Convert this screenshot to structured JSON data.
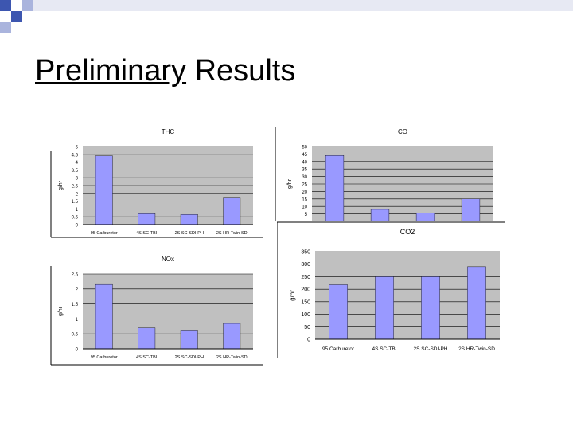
{
  "slide": {
    "title_underlined": "Preliminary",
    "title_rest": "Results"
  },
  "colors": {
    "bar": "#9999ff",
    "grid": "#000000",
    "plot_bg": "#c0c0c0",
    "corner_blue": "#3d56b0"
  },
  "chart_data": [
    {
      "type": "bar",
      "title": "THC",
      "ylabel": "g/hr",
      "categories": [
        "95 Carburetor",
        "4S SC-TBI",
        "2S SC-SDI-PH",
        "2S HR-Twin-SD"
      ],
      "values": [
        4.4,
        0.7,
        0.65,
        1.7
      ],
      "ylim": [
        0,
        5
      ],
      "yticks": [
        "0",
        "0.5",
        "1",
        "1.5",
        "2",
        "2.5",
        "3",
        "3.5",
        "4",
        "4.5",
        "5"
      ],
      "grid": true
    },
    {
      "type": "bar",
      "title": "CO",
      "ylabel": "g/hr",
      "categories": [
        "95 Carburetor",
        "4S SC-TBI",
        "2S SC-SDI-PH",
        "2S HR-Twin-SD"
      ],
      "values": [
        44,
        8,
        5.5,
        15
      ],
      "ylim": [
        0,
        50
      ],
      "yticks": [
        "5",
        "10",
        "15",
        "20",
        "25",
        "30",
        "35",
        "40",
        "45",
        "50"
      ],
      "grid": true
    },
    {
      "type": "bar",
      "title": "NOx",
      "ylabel": "g/hr",
      "categories": [
        "95 Carburetor",
        "4S SC-TBI",
        "2S SC-SDI-PH",
        "2S HR-Twin-SD"
      ],
      "values": [
        2.15,
        0.7,
        0.6,
        0.85
      ],
      "ylim": [
        0,
        2.5
      ],
      "yticks": [
        "0",
        "0.5",
        "1",
        "1.5",
        "2",
        "2.5"
      ],
      "grid": true
    },
    {
      "type": "bar",
      "title": "CO2",
      "ylabel": "g/hr",
      "categories": [
        "95 Carburetor",
        "4S SC-TBI",
        "2S SC-SDI-PH",
        "2S HR-Twin-SD"
      ],
      "values": [
        218,
        250,
        250,
        290
      ],
      "ylim": [
        0,
        350
      ],
      "yticks": [
        "0",
        "50",
        "100",
        "150",
        "200",
        "250",
        "300",
        "350"
      ],
      "grid": true
    }
  ]
}
